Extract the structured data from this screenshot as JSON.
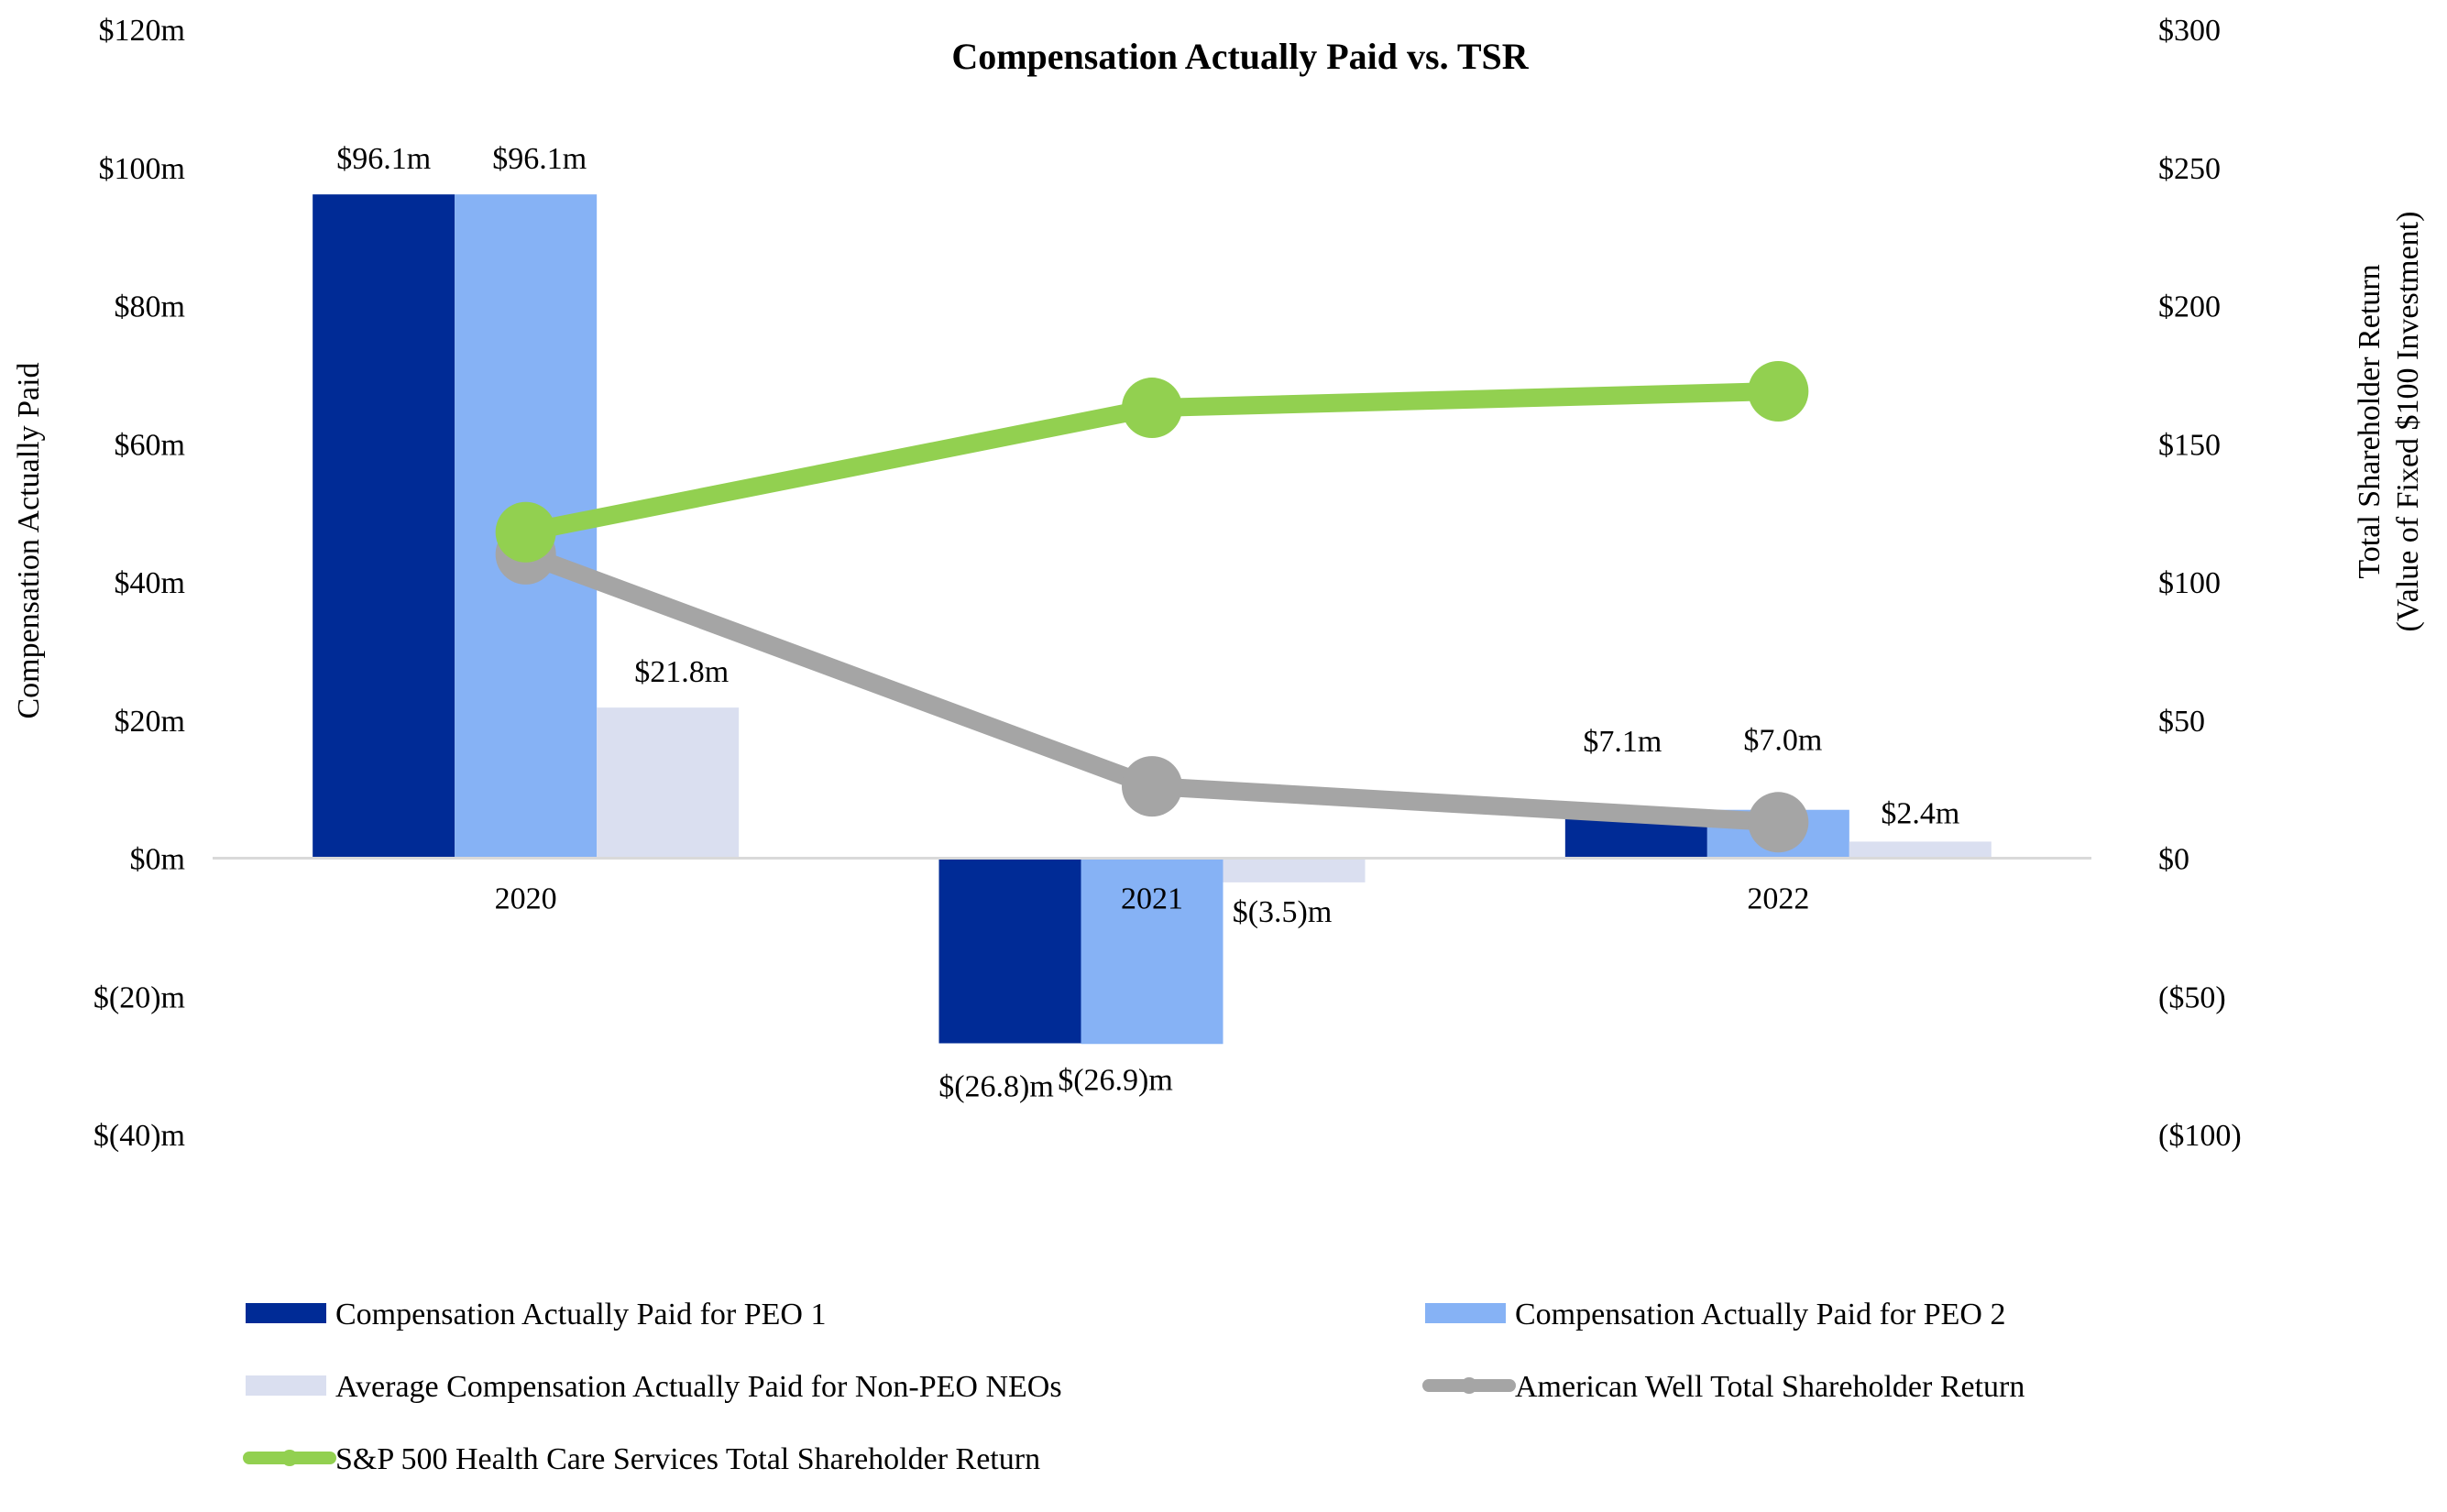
{
  "chart_data": {
    "type": "bar",
    "title": "Compensation Actually Paid vs. TSR",
    "ylabel_left": "Compensation Actually Paid",
    "ylabel_right_line1": "Total Shareholder Return",
    "ylabel_right_line2": "(Value of Fixed $100 Investment)",
    "categories": [
      "2020",
      "2021",
      "2022"
    ],
    "ylim_left": [
      -40,
      120
    ],
    "ylim_right": [
      -100,
      300
    ],
    "left_ticks": [
      {
        "value": 120,
        "label": "$120m"
      },
      {
        "value": 100,
        "label": "$100m"
      },
      {
        "value": 80,
        "label": "$80m"
      },
      {
        "value": 60,
        "label": "$60m"
      },
      {
        "value": 40,
        "label": "$40m"
      },
      {
        "value": 20,
        "label": "$20m"
      },
      {
        "value": 0,
        "label": "$0m"
      },
      {
        "value": -20,
        "label": "$(20)m"
      },
      {
        "value": -40,
        "label": "$(40)m"
      }
    ],
    "right_ticks": [
      {
        "value": 300,
        "label": "$300"
      },
      {
        "value": 250,
        "label": "$250"
      },
      {
        "value": 200,
        "label": "$200"
      },
      {
        "value": 150,
        "label": "$150"
      },
      {
        "value": 100,
        "label": "$100"
      },
      {
        "value": 50,
        "label": "$50"
      },
      {
        "value": 0,
        "label": "$0"
      },
      {
        "value": -50,
        "label": "($50)"
      },
      {
        "value": -100,
        "label": "($100)"
      }
    ],
    "bar_series": [
      {
        "name": "Compensation Actually Paid for PEO 1",
        "color": "#002b96",
        "values": [
          96.1,
          -26.8,
          7.1
        ],
        "labels": [
          "$96.1m",
          "$(26.8)m",
          "$7.1m"
        ]
      },
      {
        "name": "Compensation Actually Paid for PEO 2",
        "color": "#86b2f5",
        "values": [
          96.1,
          -26.9,
          7.0
        ],
        "labels": [
          "$96.1m",
          "$(26.9)m",
          "$7.0m"
        ]
      },
      {
        "name": "Average Compensation Actually Paid for Non-PEO NEOs",
        "color": "#dadff0",
        "values": [
          21.8,
          -3.5,
          2.4
        ],
        "labels": [
          "$21.8m",
          "$(3.5)m",
          "$2.4m"
        ]
      }
    ],
    "line_series": [
      {
        "name": "American Well Total Shareholder Return",
        "color": "#a5a5a5",
        "values": [
          110,
          26,
          13
        ]
      },
      {
        "name": "S&P 500 Health Care Services Total Shareholder Return",
        "color": "#92d050",
        "values": [
          118,
          163,
          169
        ]
      }
    ],
    "legend_position": "bottom"
  }
}
